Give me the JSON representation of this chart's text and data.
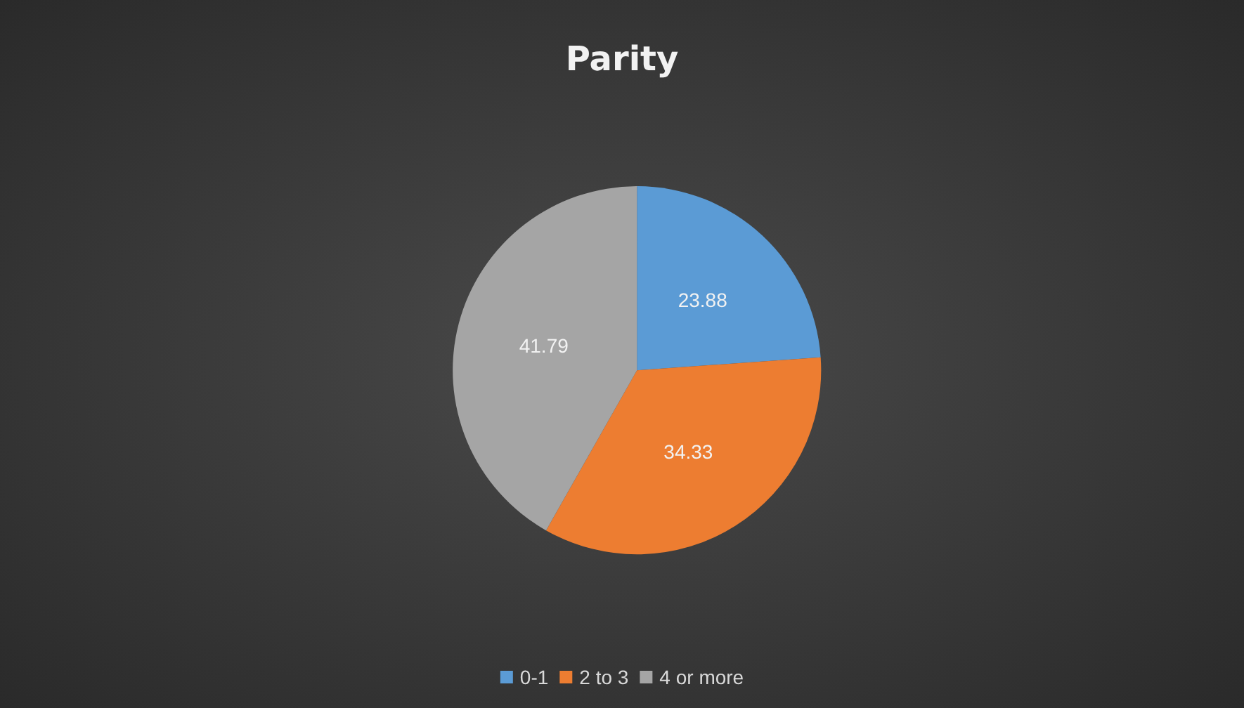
{
  "chart_data": {
    "type": "pie",
    "title": "Parity",
    "categories": [
      "0-1",
      "2 to 3",
      "4 or more"
    ],
    "values": [
      23.88,
      34.33,
      41.79
    ],
    "colors": [
      "#5b9bd5",
      "#ed7d31",
      "#a5a5a5"
    ],
    "data_labels": true,
    "legend": "bottom"
  }
}
